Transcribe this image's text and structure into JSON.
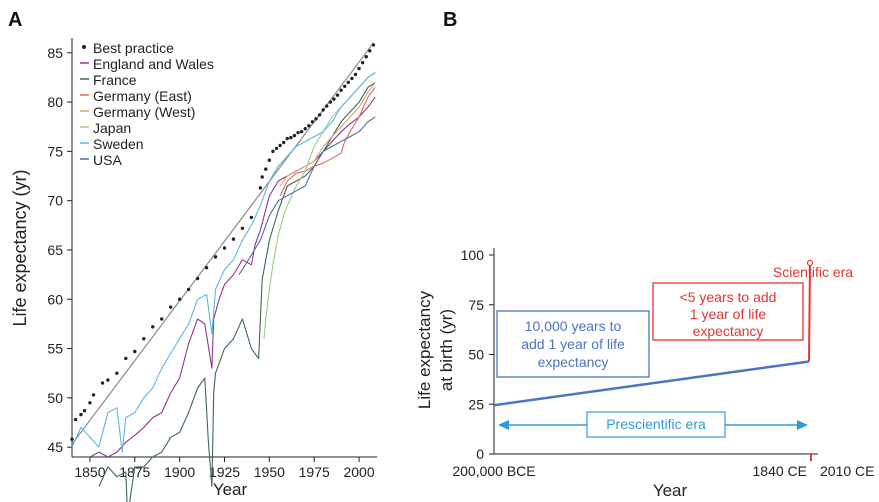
{
  "chart_data": [
    {
      "panel": "A",
      "type": "line",
      "title": "",
      "xlabel": "Year",
      "ylabel": "Life expectancy (yr)",
      "xlim": [
        1840,
        2010
      ],
      "ylim": [
        44,
        86.5
      ],
      "x_ticks": [
        "1850",
        "1875",
        "1900",
        "1925",
        "1950",
        "1975",
        "2000"
      ],
      "y_ticks": [
        "45",
        "50",
        "55",
        "60",
        "65",
        "70",
        "75",
        "80",
        "85"
      ],
      "legend_position": "top-left",
      "best_practice_trend": {
        "x": [
          1840,
          2008
        ],
        "y": [
          45.3,
          86.0
        ],
        "color": "#8a8a8a"
      },
      "series": [
        {
          "name": "Best practice",
          "kind": "points",
          "color": "#222222",
          "x": [
            1840,
            1842,
            1845,
            1847,
            1850,
            1852,
            1857,
            1860,
            1865,
            1870,
            1875,
            1880,
            1885,
            1890,
            1895,
            1900,
            1905,
            1910,
            1915,
            1920,
            1925,
            1930,
            1935,
            1940,
            1945,
            1946,
            1948,
            1950,
            1952,
            1954,
            1956,
            1958,
            1960,
            1962,
            1964,
            1966,
            1968,
            1970,
            1972,
            1974,
            1976,
            1978,
            1980,
            1982,
            1984,
            1986,
            1988,
            1990,
            1992,
            1994,
            1996,
            1998,
            2000,
            2002,
            2004,
            2006,
            2008
          ],
          "y": [
            45.8,
            47.8,
            48.3,
            48.7,
            49.5,
            50.3,
            51.5,
            51.8,
            52.5,
            54.0,
            54.7,
            56.0,
            57.2,
            58.0,
            59.2,
            60.0,
            61.0,
            62.1,
            63.2,
            64.3,
            65.2,
            66.1,
            67.2,
            68.3,
            71.3,
            72.4,
            73.2,
            74.1,
            75.0,
            75.3,
            75.6,
            75.9,
            76.3,
            76.4,
            76.6,
            76.9,
            77.0,
            77.3,
            77.6,
            78.0,
            78.3,
            78.7,
            79.2,
            79.6,
            80.0,
            80.3,
            80.7,
            81.2,
            81.6,
            82.0,
            82.4,
            82.8,
            83.4,
            84.0,
            84.6,
            85.2,
            85.8
          ]
        },
        {
          "name": "England and Wales",
          "color": "#8b3a8b",
          "x": [
            1850,
            1855,
            1860,
            1865,
            1870,
            1875,
            1880,
            1885,
            1890,
            1895,
            1900,
            1905,
            1910,
            1914,
            1918,
            1919,
            1922,
            1925,
            1930,
            1935,
            1940,
            1942,
            1945,
            1950,
            1955,
            1960,
            1965,
            1970,
            1975,
            1980,
            1985,
            1990,
            1995,
            2000,
            2005,
            2009
          ],
          "y": [
            44.0,
            44.5,
            44.0,
            44.5,
            45.5,
            46.2,
            47.0,
            48.0,
            48.5,
            50.5,
            52.0,
            55.5,
            58.0,
            57.5,
            53.0,
            58.0,
            60.0,
            61.5,
            62.5,
            64.0,
            63.5,
            65.5,
            67.0,
            70.5,
            72.0,
            72.5,
            73.0,
            73.5,
            74.0,
            75.0,
            76.0,
            77.0,
            77.8,
            78.5,
            79.5,
            80.5
          ]
        },
        {
          "name": "France",
          "color": "#3d6a4e",
          "x": [
            1855,
            1860,
            1865,
            1870,
            1871,
            1875,
            1880,
            1885,
            1890,
            1895,
            1900,
            1905,
            1910,
            1914,
            1916,
            1918,
            1919,
            1920,
            1925,
            1930,
            1935,
            1940,
            1944,
            1946,
            1950,
            1955,
            1960,
            1965,
            1970,
            1975,
            1980,
            1985,
            1990,
            1995,
            2000,
            2005,
            2009
          ],
          "y": [
            41.0,
            43.0,
            42.0,
            42.5,
            38.0,
            43.0,
            43.0,
            44.0,
            44.5,
            46.0,
            46.5,
            48.5,
            51.0,
            52.0,
            45.5,
            41.0,
            50.5,
            52.5,
            55.0,
            56.0,
            58.0,
            55.0,
            54.0,
            62.0,
            66.0,
            69.0,
            71.5,
            72.0,
            72.5,
            73.5,
            75.0,
            76.5,
            78.0,
            79.0,
            80.0,
            81.5,
            82.0
          ]
        },
        {
          "name": "Germany (East)",
          "color": "#e06a5e",
          "x": [
            1956,
            1960,
            1965,
            1970,
            1975,
            1980,
            1985,
            1990,
            1992,
            1995,
            2000,
            2005,
            2009
          ],
          "y": [
            70.5,
            72.0,
            72.8,
            73.0,
            73.5,
            73.8,
            74.3,
            74.8,
            76.0,
            77.0,
            78.5,
            80.5,
            81.5
          ]
        },
        {
          "name": "Germany (West)",
          "color": "#d4a873",
          "x": [
            1956,
            1960,
            1965,
            1970,
            1975,
            1980,
            1985,
            1990,
            1995,
            2000,
            2005,
            2009
          ],
          "y": [
            71.5,
            72.5,
            73.0,
            73.5,
            74.0,
            75.5,
            76.5,
            77.5,
            78.5,
            79.5,
            81.0,
            82.0
          ]
        },
        {
          "name": "Japan",
          "color": "#9fc88c",
          "x": [
            1947,
            1948,
            1950,
            1952,
            1955,
            1958,
            1960,
            1965,
            1970,
            1975,
            1980,
            1985,
            1990,
            1995,
            2000,
            2005,
            2009
          ],
          "y": [
            56.0,
            58.0,
            61.0,
            63.5,
            66.5,
            68.5,
            69.5,
            71.5,
            73.0,
            75.5,
            77.0,
            78.5,
            79.5,
            80.5,
            81.5,
            82.5,
            83.0
          ]
        },
        {
          "name": "Sweden",
          "color": "#5cb8dc",
          "x": [
            1840,
            1845,
            1850,
            1855,
            1860,
            1865,
            1868,
            1870,
            1875,
            1880,
            1885,
            1890,
            1895,
            1900,
            1905,
            1910,
            1915,
            1918,
            1920,
            1925,
            1930,
            1935,
            1940,
            1945,
            1950,
            1955,
            1960,
            1965,
            1970,
            1975,
            1980,
            1985,
            1990,
            1995,
            2000,
            2005,
            2009
          ],
          "y": [
            45.0,
            47.0,
            46.0,
            45.0,
            48.5,
            49.0,
            44.5,
            48.0,
            48.5,
            50.0,
            51.0,
            53.0,
            54.5,
            56.0,
            57.5,
            60.0,
            60.5,
            56.5,
            61.0,
            63.0,
            64.0,
            66.0,
            67.5,
            69.5,
            72.0,
            73.5,
            74.5,
            75.5,
            76.0,
            76.5,
            77.0,
            78.0,
            79.5,
            80.5,
            81.5,
            82.5,
            83.0
          ]
        },
        {
          "name": "USA",
          "color": "#4a6ea8",
          "x": [
            1933,
            1935,
            1940,
            1945,
            1950,
            1955,
            1960,
            1965,
            1970,
            1975,
            1980,
            1985,
            1990,
            1995,
            2000,
            2005,
            2009
          ],
          "y": [
            62.5,
            63.0,
            64.5,
            66.0,
            68.5,
            70.0,
            70.5,
            71.0,
            71.5,
            73.5,
            75.0,
            75.5,
            76.0,
            76.5,
            77.0,
            78.0,
            78.5
          ]
        }
      ]
    },
    {
      "panel": "B",
      "type": "line",
      "title": "",
      "xlabel": "Year",
      "ylabel": "Life expectancy\nat birth (yr)",
      "ylim": [
        0,
        100
      ],
      "y_ticks": [
        "0",
        "25",
        "50",
        "75",
        "100"
      ],
      "x_ticks": [
        "200,000 BCE",
        "1840 CE",
        "2010 CE"
      ],
      "series": [
        {
          "segment": "prescientific",
          "x": [
            "200,000 BCE",
            "1840 CE"
          ],
          "y": [
            24.5,
            46.5
          ],
          "color": "#4a74c4"
        },
        {
          "segment": "scientific",
          "x": [
            "1840 CE",
            "2010 CE"
          ],
          "y": [
            46.5,
            96
          ],
          "color": "#e8332e"
        }
      ],
      "annotations": [
        {
          "id": "scientific_era",
          "lines": [
            "Scientific era"
          ],
          "color": "#e8332e"
        },
        {
          "id": "scientific_box",
          "lines": [
            "<5 years to add",
            "1 year of life",
            "expectancy"
          ],
          "color": "#e8332e"
        },
        {
          "id": "prescientific_box",
          "lines": [
            "10,000 years to",
            "add 1 year of life",
            "expectancy"
          ],
          "color": "#4a74c4"
        },
        {
          "id": "prescientific_era",
          "lines": [
            "Prescientific era"
          ],
          "color": "#2e9bd6"
        }
      ]
    }
  ],
  "panel_labels": {
    "a": "A",
    "b": "B"
  }
}
